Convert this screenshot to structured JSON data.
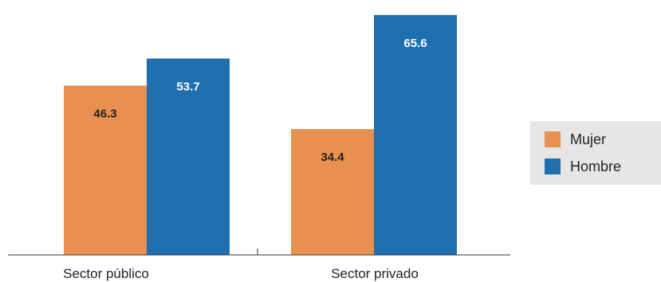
{
  "chart_data": {
    "type": "bar",
    "categories": [
      "Sector público",
      "Sector privado"
    ],
    "series": [
      {
        "name": "Mujer",
        "color": "#e8904f",
        "values": [
          46.3,
          34.4
        ],
        "labels": [
          "46.3",
          "34.4"
        ]
      },
      {
        "name": "Hombre",
        "color": "#1f6fae",
        "values": [
          53.7,
          65.6
        ],
        "labels": [
          "53.7",
          "65.6"
        ]
      }
    ],
    "ylim": [
      0,
      66
    ],
    "grid": false,
    "legend_position": "right",
    "label_colors": {
      "Mujer": "#222222",
      "Hombre": "#ffffff"
    }
  }
}
